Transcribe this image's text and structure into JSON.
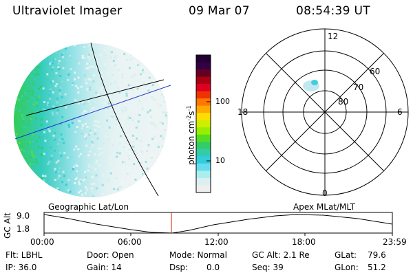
{
  "header": {
    "instrument": "Ultraviolet Imager",
    "date": "09 Mar 07",
    "time": "08:54:39 UT"
  },
  "colorbar": {
    "unit_label": "photon cm",
    "unit_sup1": "-2",
    "unit_mid": "s",
    "unit_sup2": "-1",
    "tick_100": "100",
    "tick_10": "10",
    "colors": [
      "#220033",
      "#330044",
      "#660022",
      "#aa0011",
      "#dd0022",
      "#ee3300",
      "#ff7700",
      "#ffaa00",
      "#ffdd00",
      "#ccee00",
      "#99ee00",
      "#55dd22",
      "#33cc66",
      "#33ccaa",
      "#33ccdd",
      "#66ddee",
      "#aaeeee",
      "#ddeeee",
      "#eeeeee"
    ]
  },
  "polar": {
    "label_12": "12",
    "label_18": "18",
    "label_6": "6",
    "label_0": "0",
    "label_60": "60",
    "label_70": "70",
    "label_80": "80"
  },
  "timeline": {
    "left_title": "Geographic Lat/Lon",
    "right_title": "Apex MLat/MLT",
    "axis_name": "GC Alt",
    "y_top": "9.0",
    "y_bottom": "1.8",
    "ticks": [
      "00:00",
      "06:00",
      "12:00",
      "18:00",
      "23:59"
    ]
  },
  "status": {
    "flt": "Flt: LBHL",
    "ip": "IP: 36.0",
    "door": "Door: Open",
    "gain": "Gain: 14",
    "mode": "Mode: Normal",
    "dsp_label": "Dsp:",
    "dsp_value": "0.0",
    "gcalt": "GC Alt: 2.1 Re",
    "seq": "Seq: 39",
    "glat_label": "GLat:",
    "glat_value": "79.6",
    "glon_label": "GLon:",
    "glon_value": "51.2"
  }
}
